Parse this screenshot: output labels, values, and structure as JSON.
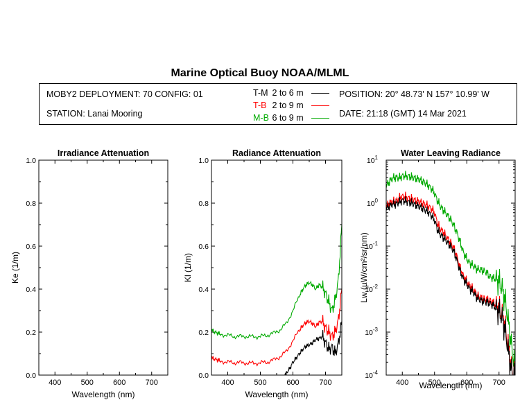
{
  "title": "Marine Optical Buoy NOAA/MLML",
  "info": {
    "deployment": "MOBY2 DEPLOYMENT: 70 CONFIG: 01",
    "station": "STATION: Lanai Mooring",
    "position": "POSITION: 20° 48.73' N   157° 10.99' W",
    "date": "DATE: 21:18 (GMT) 14 Mar 2021"
  },
  "legend": [
    {
      "code": "T-M",
      "range": "2 to 6  m",
      "color": "#000000"
    },
    {
      "code": "T-B",
      "range": "2 to 9  m",
      "color": "#ff0000"
    },
    {
      "code": "M-B",
      "range": "6 to 9  m",
      "color": "#00aa00"
    }
  ],
  "chart_data": [
    {
      "type": "line",
      "title": "Irradiance Attenuation",
      "xlabel": "Wavelength (nm)",
      "ylabel": "Ke  (1/m)",
      "xlim": [
        350,
        750
      ],
      "ylim": [
        0,
        1
      ],
      "xticks": [
        400,
        500,
        600,
        700
      ],
      "xtick_labels": [
        "400",
        "500",
        "600",
        "700"
      ],
      "yticks": [
        0,
        0.2,
        0.4,
        0.6,
        0.8,
        1.0
      ],
      "ytick_labels": [
        "0.0",
        "0.2",
        "0.4",
        "0.6",
        "0.8",
        "1.0"
      ],
      "series": []
    },
    {
      "type": "line",
      "title": "Radiance Attenuation",
      "xlabel": "Wavelength (nm)",
      "ylabel": "Kl  (1/m)",
      "xlim": [
        350,
        750
      ],
      "ylim": [
        0,
        1
      ],
      "xticks": [
        400,
        500,
        600,
        700
      ],
      "xtick_labels": [
        "400",
        "500",
        "600",
        "700"
      ],
      "yticks": [
        0,
        0.2,
        0.4,
        0.6,
        0.8,
        1.0
      ],
      "ytick_labels": [
        "0.0",
        "0.2",
        "0.4",
        "0.6",
        "0.8",
        "1.0"
      ],
      "series": [
        {
          "name": "M-B",
          "color": "#00aa00",
          "x": [
            350,
            360,
            370,
            380,
            400,
            420,
            440,
            460,
            480,
            500,
            520,
            540,
            560,
            580,
            600,
            620,
            630,
            640,
            650,
            660,
            670,
            680,
            690,
            700,
            710,
            720,
            730,
            740,
            750
          ],
          "y": [
            0.21,
            0.2,
            0.195,
            0.19,
            0.185,
            0.18,
            0.18,
            0.18,
            0.178,
            0.18,
            0.185,
            0.195,
            0.21,
            0.24,
            0.3,
            0.37,
            0.4,
            0.42,
            0.43,
            0.42,
            0.4,
            0.42,
            0.41,
            0.38,
            0.34,
            0.3,
            0.35,
            0.45,
            0.7
          ]
        },
        {
          "name": "T-B",
          "color": "#ff0000",
          "x": [
            350,
            360,
            370,
            380,
            400,
            420,
            440,
            460,
            480,
            500,
            520,
            540,
            560,
            580,
            600,
            620,
            630,
            640,
            650,
            660,
            670,
            680,
            690,
            700,
            710,
            720,
            730,
            740,
            750
          ],
          "y": [
            0.08,
            0.075,
            0.07,
            0.065,
            0.06,
            0.058,
            0.058,
            0.056,
            0.055,
            0.057,
            0.06,
            0.07,
            0.085,
            0.11,
            0.16,
            0.21,
            0.23,
            0.245,
            0.25,
            0.24,
            0.225,
            0.245,
            0.25,
            0.22,
            0.2,
            0.18,
            0.2,
            0.26,
            0.4
          ]
        },
        {
          "name": "T-M",
          "color": "#000000",
          "x": [
            575,
            580,
            590,
            600,
            610,
            620,
            630,
            640,
            650,
            660,
            670,
            680,
            690,
            700,
            710,
            720,
            730,
            740,
            750
          ],
          "y": [
            0.0,
            0.01,
            0.03,
            0.06,
            0.08,
            0.1,
            0.12,
            0.135,
            0.14,
            0.15,
            0.165,
            0.17,
            0.18,
            0.15,
            0.12,
            0.13,
            0.1,
            0.15,
            0.25
          ]
        }
      ]
    },
    {
      "type": "line",
      "scale": "log",
      "title": "Water Leaving Radiance",
      "xlabel": "Wavelength (nm)",
      "ylabel": "Lw  (µW/cm²/sr/nm)",
      "xlim": [
        350,
        750
      ],
      "ylim_exp": [
        -4,
        1
      ],
      "xticks": [
        400,
        500,
        600,
        700
      ],
      "xtick_labels": [
        "400",
        "500",
        "600",
        "700"
      ],
      "yticks_exp": [
        -4,
        -3,
        -2,
        -1,
        0,
        1
      ],
      "ytick_base": "10",
      "ytick_exps": [
        "-4",
        "-3",
        "-2",
        "-1",
        "0",
        "1"
      ],
      "series": [
        {
          "name": "M-B",
          "color": "#00aa00",
          "x": [
            350,
            360,
            370,
            380,
            390,
            400,
            410,
            420,
            430,
            440,
            450,
            460,
            470,
            480,
            490,
            500,
            510,
            520,
            530,
            540,
            550,
            560,
            570,
            580,
            590,
            600,
            610,
            620,
            630,
            640,
            650,
            660,
            670,
            680,
            690,
            700,
            710,
            720,
            730,
            740,
            750
          ],
          "y": [
            2.5,
            3.2,
            3.8,
            4.0,
            3.8,
            4.3,
            4.3,
            4.2,
            4.0,
            3.8,
            3.6,
            3.3,
            3.0,
            2.6,
            2.2,
            1.7,
            1.1,
            0.8,
            0.65,
            0.52,
            0.42,
            0.3,
            0.2,
            0.12,
            0.07,
            0.05,
            0.04,
            0.035,
            0.03,
            0.028,
            0.027,
            0.025,
            0.02,
            0.018,
            0.017,
            0.015,
            0.01,
            0.005,
            0.0015,
            0.0004,
            0.00015
          ]
        },
        {
          "name": "T-B",
          "color": "#ff0000",
          "x": [
            350,
            360,
            370,
            380,
            390,
            400,
            410,
            420,
            430,
            440,
            450,
            460,
            470,
            480,
            490,
            500,
            510,
            520,
            530,
            540,
            550,
            560,
            570,
            580,
            590,
            600,
            610,
            620,
            630,
            640,
            650,
            660,
            670,
            680,
            690,
            700,
            710,
            720,
            730,
            740,
            750
          ],
          "y": [
            0.85,
            1.0,
            1.1,
            1.1,
            1.3,
            1.45,
            1.4,
            1.3,
            1.25,
            1.15,
            1.1,
            1.0,
            0.95,
            0.85,
            0.75,
            0.6,
            0.32,
            0.24,
            0.2,
            0.15,
            0.12,
            0.09,
            0.055,
            0.03,
            0.02,
            0.015,
            0.012,
            0.01,
            0.0075,
            0.0065,
            0.006,
            0.0058,
            0.0055,
            0.005,
            0.0042,
            0.0035,
            0.0025,
            0.0012,
            0.0004,
            0.00012,
            0.00011
          ]
        },
        {
          "name": "T-M",
          "color": "#000000",
          "x": [
            350,
            360,
            370,
            380,
            390,
            400,
            410,
            420,
            430,
            440,
            450,
            460,
            470,
            480,
            490,
            500,
            510,
            520,
            530,
            540,
            550,
            560,
            570,
            580,
            590,
            600,
            610,
            620,
            630,
            640,
            650,
            660,
            670,
            680,
            690,
            700,
            710,
            720,
            730,
            740,
            750
          ],
          "y": [
            0.75,
            0.85,
            0.95,
            0.95,
            1.05,
            1.15,
            1.1,
            1.05,
            1.0,
            0.92,
            0.85,
            0.78,
            0.7,
            0.62,
            0.52,
            0.4,
            0.23,
            0.18,
            0.15,
            0.12,
            0.1,
            0.075,
            0.045,
            0.025,
            0.017,
            0.013,
            0.01,
            0.0085,
            0.0065,
            0.0056,
            0.0052,
            0.005,
            0.0047,
            0.0043,
            0.0036,
            0.003,
            0.0021,
            0.001,
            0.0003,
            0.00011,
            0.0001
          ]
        }
      ]
    }
  ]
}
